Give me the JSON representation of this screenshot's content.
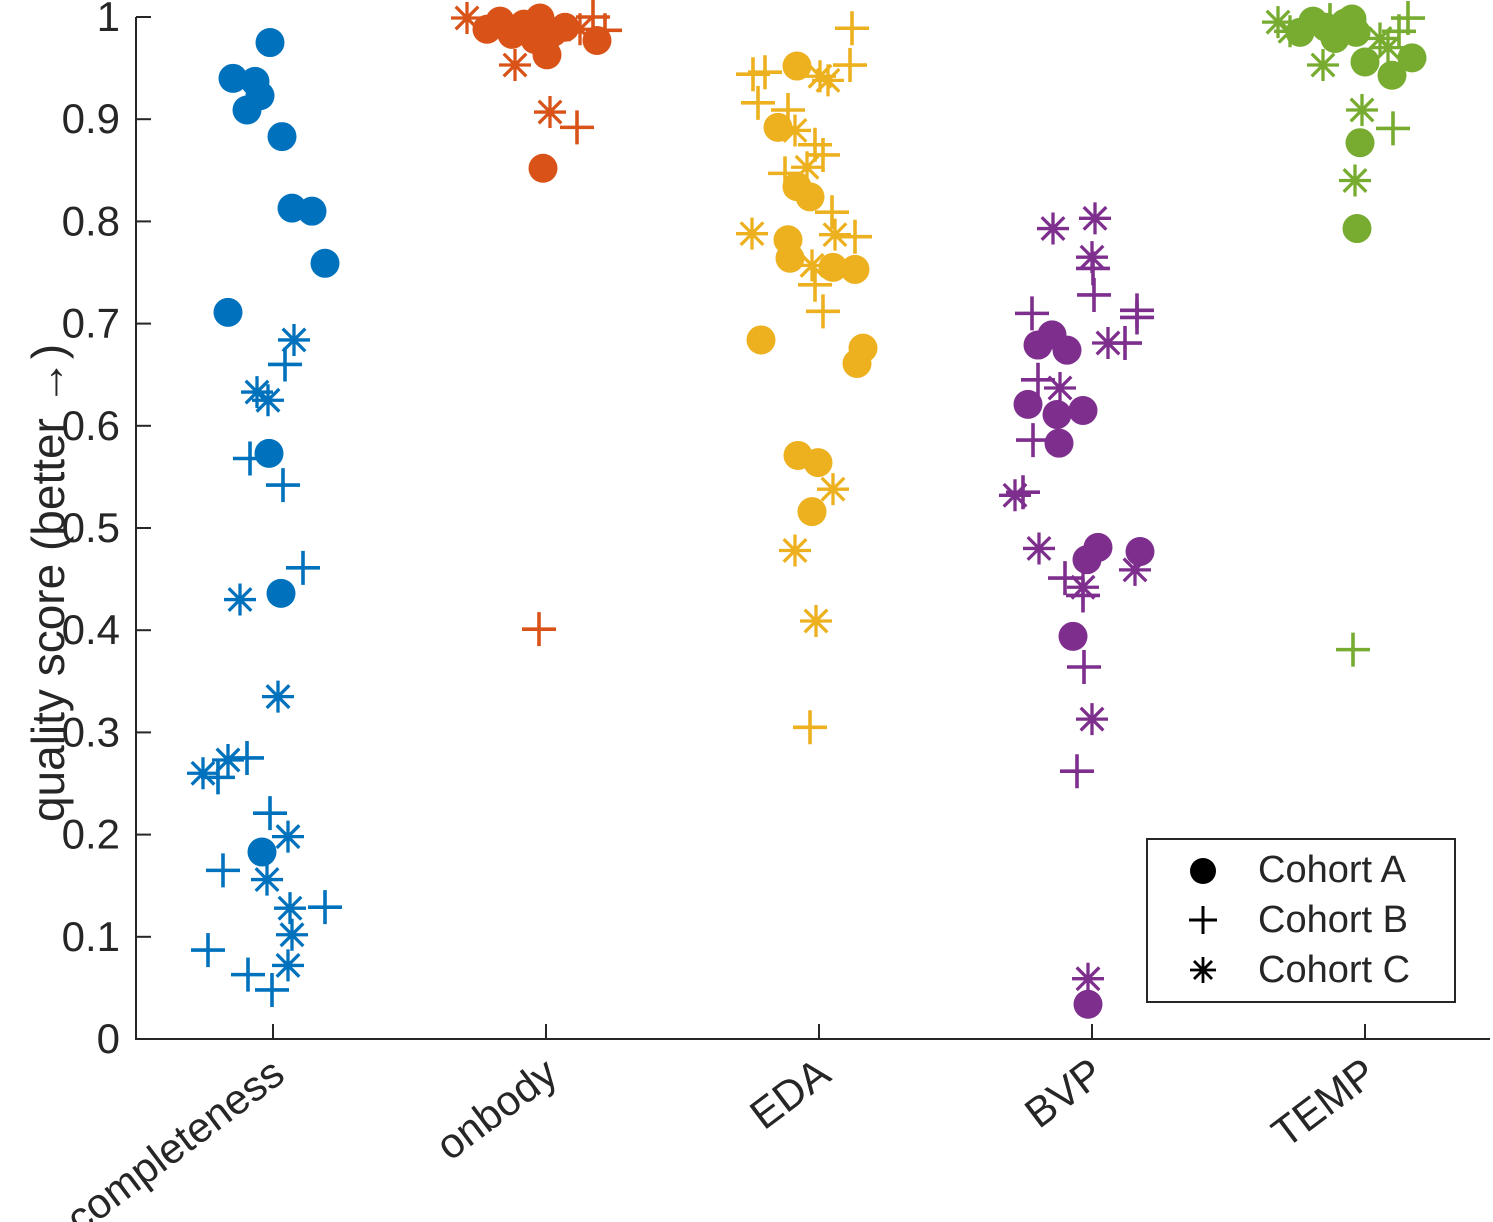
{
  "figure": {
    "background": "#ffffff"
  },
  "chart_data": {
    "type": "scatter",
    "title": "",
    "xlabel": "",
    "ylabel": "quality score (better →)",
    "categories": [
      "completeness",
      "onbody",
      "EDA",
      "BVP",
      "TEMP"
    ],
    "category_colors": [
      "#0072BD",
      "#D95319",
      "#EDB120",
      "#7E2F8E",
      "#77AC30"
    ],
    "ylim": [
      0,
      1
    ],
    "yticks": [
      0,
      0.1,
      0.2,
      0.3,
      0.4,
      0.5,
      0.6,
      0.7,
      0.8,
      0.9,
      1
    ],
    "ytick_labels": [
      "0",
      "0.1",
      "0.2",
      "0.3",
      "0.4",
      "0.5",
      "0.6",
      "0.7",
      "0.8",
      "0.9",
      "1"
    ],
    "grid": false,
    "axis_color": "#262626",
    "legend": {
      "position": "southeast",
      "entries": [
        {
          "label": "Cohort A",
          "marker": "circle"
        },
        {
          "label": "Cohort B",
          "marker": "plus"
        },
        {
          "label": "Cohort C",
          "marker": "asterisk"
        }
      ]
    },
    "point_format": "[category_index, x_jitter_px, quality_score]",
    "series": [
      {
        "name": "Cohort A",
        "marker": "circle",
        "points": [
          [
            0,
            -3,
            0.975
          ],
          [
            0,
            -40,
            0.94
          ],
          [
            0,
            -18,
            0.937
          ],
          [
            0,
            -13,
            0.923
          ],
          [
            0,
            -26,
            0.909
          ],
          [
            0,
            9,
            0.883
          ],
          [
            0,
            19,
            0.813
          ],
          [
            0,
            39,
            0.81
          ],
          [
            0,
            52,
            0.759
          ],
          [
            0,
            -45,
            0.711
          ],
          [
            0,
            -4,
            0.573
          ],
          [
            0,
            8,
            0.436
          ],
          [
            0,
            -11,
            0.183
          ],
          [
            1,
            -59,
            0.988
          ],
          [
            1,
            -46,
            0.996
          ],
          [
            1,
            -34,
            0.983
          ],
          [
            1,
            -22,
            0.993
          ],
          [
            1,
            -11,
            0.978
          ],
          [
            1,
            -6,
            0.999
          ],
          [
            1,
            7,
            0.985
          ],
          [
            1,
            19,
            0.99
          ],
          [
            1,
            1,
            0.963
          ],
          [
            1,
            51,
            0.977
          ],
          [
            1,
            -3,
            0.852
          ],
          [
            2,
            -22,
            0.952
          ],
          [
            2,
            -41,
            0.892
          ],
          [
            2,
            -22,
            0.834
          ],
          [
            2,
            -9,
            0.824
          ],
          [
            2,
            -31,
            0.782
          ],
          [
            2,
            -29,
            0.764
          ],
          [
            2,
            14,
            0.755
          ],
          [
            2,
            36,
            0.753
          ],
          [
            2,
            -58,
            0.684
          ],
          [
            2,
            44,
            0.676
          ],
          [
            2,
            38,
            0.661
          ],
          [
            2,
            -21,
            0.571
          ],
          [
            2,
            -1,
            0.564
          ],
          [
            2,
            -7,
            0.516
          ],
          [
            3,
            -54,
            0.679
          ],
          [
            3,
            -40,
            0.689
          ],
          [
            3,
            -25,
            0.674
          ],
          [
            3,
            -64,
            0.621
          ],
          [
            3,
            -35,
            0.611
          ],
          [
            3,
            -9,
            0.615
          ],
          [
            3,
            -33,
            0.583
          ],
          [
            3,
            6,
            0.481
          ],
          [
            3,
            -5,
            0.469
          ],
          [
            3,
            48,
            0.477
          ],
          [
            3,
            -19,
            0.394
          ],
          [
            3,
            -4,
            0.034
          ],
          [
            4,
            -65,
            0.985
          ],
          [
            4,
            -52,
            0.996
          ],
          [
            4,
            -39,
            0.99
          ],
          [
            4,
            -30,
            0.979
          ],
          [
            4,
            -20,
            0.994
          ],
          [
            4,
            -13,
            0.998
          ],
          [
            4,
            -9,
            0.985
          ],
          [
            4,
            0,
            0.956
          ],
          [
            4,
            27,
            0.943
          ],
          [
            4,
            47,
            0.96
          ],
          [
            4,
            -5,
            0.877
          ],
          [
            4,
            -8,
            0.793
          ]
        ]
      },
      {
        "name": "Cohort B",
        "marker": "plus",
        "points": [
          [
            0,
            12,
            0.66
          ],
          [
            0,
            -23,
            0.568
          ],
          [
            0,
            10,
            0.542
          ],
          [
            0,
            30,
            0.461
          ],
          [
            0,
            -26,
            0.275
          ],
          [
            0,
            -55,
            0.256
          ],
          [
            0,
            -3,
            0.221
          ],
          [
            0,
            -50,
            0.165
          ],
          [
            0,
            52,
            0.129
          ],
          [
            0,
            -65,
            0.087
          ],
          [
            0,
            -25,
            0.063
          ],
          [
            0,
            -1,
            0.048
          ],
          [
            1,
            47,
            1.0
          ],
          [
            1,
            59,
            0.987
          ],
          [
            1,
            31,
            0.892
          ],
          [
            1,
            -7,
            0.401
          ],
          [
            2,
            33,
            0.989
          ],
          [
            2,
            31,
            0.953
          ],
          [
            2,
            -54,
            0.946
          ],
          [
            2,
            -66,
            0.944
          ],
          [
            2,
            -61,
            0.916
          ],
          [
            2,
            -31,
            0.909
          ],
          [
            2,
            -4,
            0.875
          ],
          [
            2,
            4,
            0.865
          ],
          [
            2,
            -34,
            0.847
          ],
          [
            2,
            13,
            0.809
          ],
          [
            2,
            36,
            0.785
          ],
          [
            2,
            -4,
            0.738
          ],
          [
            2,
            4,
            0.712
          ],
          [
            2,
            -9,
            0.305
          ],
          [
            3,
            1,
            0.754
          ],
          [
            3,
            2,
            0.728
          ],
          [
            3,
            -60,
            0.71
          ],
          [
            3,
            45,
            0.713
          ],
          [
            3,
            45,
            0.706
          ],
          [
            3,
            33,
            0.681
          ],
          [
            3,
            -54,
            0.645
          ],
          [
            3,
            -59,
            0.586
          ],
          [
            3,
            -69,
            0.535
          ],
          [
            3,
            -27,
            0.451
          ],
          [
            3,
            -9,
            0.434
          ],
          [
            3,
            -8,
            0.364
          ],
          [
            3,
            -15,
            0.262
          ],
          [
            4,
            43,
            0.999
          ],
          [
            4,
            34,
            0.986
          ],
          [
            4,
            -35,
            0.997
          ],
          [
            4,
            28,
            0.891
          ],
          [
            4,
            -12,
            0.381
          ]
        ]
      },
      {
        "name": "Cohort C",
        "marker": "asterisk",
        "points": [
          [
            0,
            21,
            0.684
          ],
          [
            0,
            -16,
            0.633
          ],
          [
            0,
            -5,
            0.625
          ],
          [
            0,
            -33,
            0.43
          ],
          [
            0,
            5,
            0.335
          ],
          [
            0,
            -45,
            0.273
          ],
          [
            0,
            -70,
            0.26
          ],
          [
            0,
            15,
            0.198
          ],
          [
            0,
            -6,
            0.156
          ],
          [
            0,
            17,
            0.128
          ],
          [
            0,
            19,
            0.102
          ],
          [
            0,
            15,
            0.072
          ],
          [
            1,
            -79,
            0.999
          ],
          [
            1,
            -31,
            0.953
          ],
          [
            1,
            4,
            0.907
          ],
          [
            1,
            34,
            0.988
          ],
          [
            2,
            1,
            0.942
          ],
          [
            2,
            9,
            0.938
          ],
          [
            2,
            -24,
            0.889
          ],
          [
            2,
            -12,
            0.853
          ],
          [
            2,
            -67,
            0.788
          ],
          [
            2,
            16,
            0.787
          ],
          [
            2,
            -7,
            0.757
          ],
          [
            2,
            14,
            0.538
          ],
          [
            2,
            -24,
            0.478
          ],
          [
            2,
            -3,
            0.409
          ],
          [
            3,
            3,
            0.803
          ],
          [
            3,
            -39,
            0.793
          ],
          [
            3,
            0,
            0.765
          ],
          [
            3,
            16,
            0.681
          ],
          [
            3,
            -32,
            0.637
          ],
          [
            3,
            -77,
            0.532
          ],
          [
            3,
            -53,
            0.48
          ],
          [
            3,
            43,
            0.459
          ],
          [
            3,
            -9,
            0.442
          ],
          [
            3,
            0,
            0.313
          ],
          [
            3,
            -4,
            0.059
          ],
          [
            4,
            -87,
            0.995
          ],
          [
            4,
            -75,
            0.986
          ],
          [
            4,
            -42,
            0.953
          ],
          [
            4,
            15,
            0.979
          ],
          [
            4,
            23,
            0.97
          ],
          [
            4,
            -3,
            0.909
          ],
          [
            4,
            -10,
            0.84
          ]
        ]
      }
    ]
  }
}
